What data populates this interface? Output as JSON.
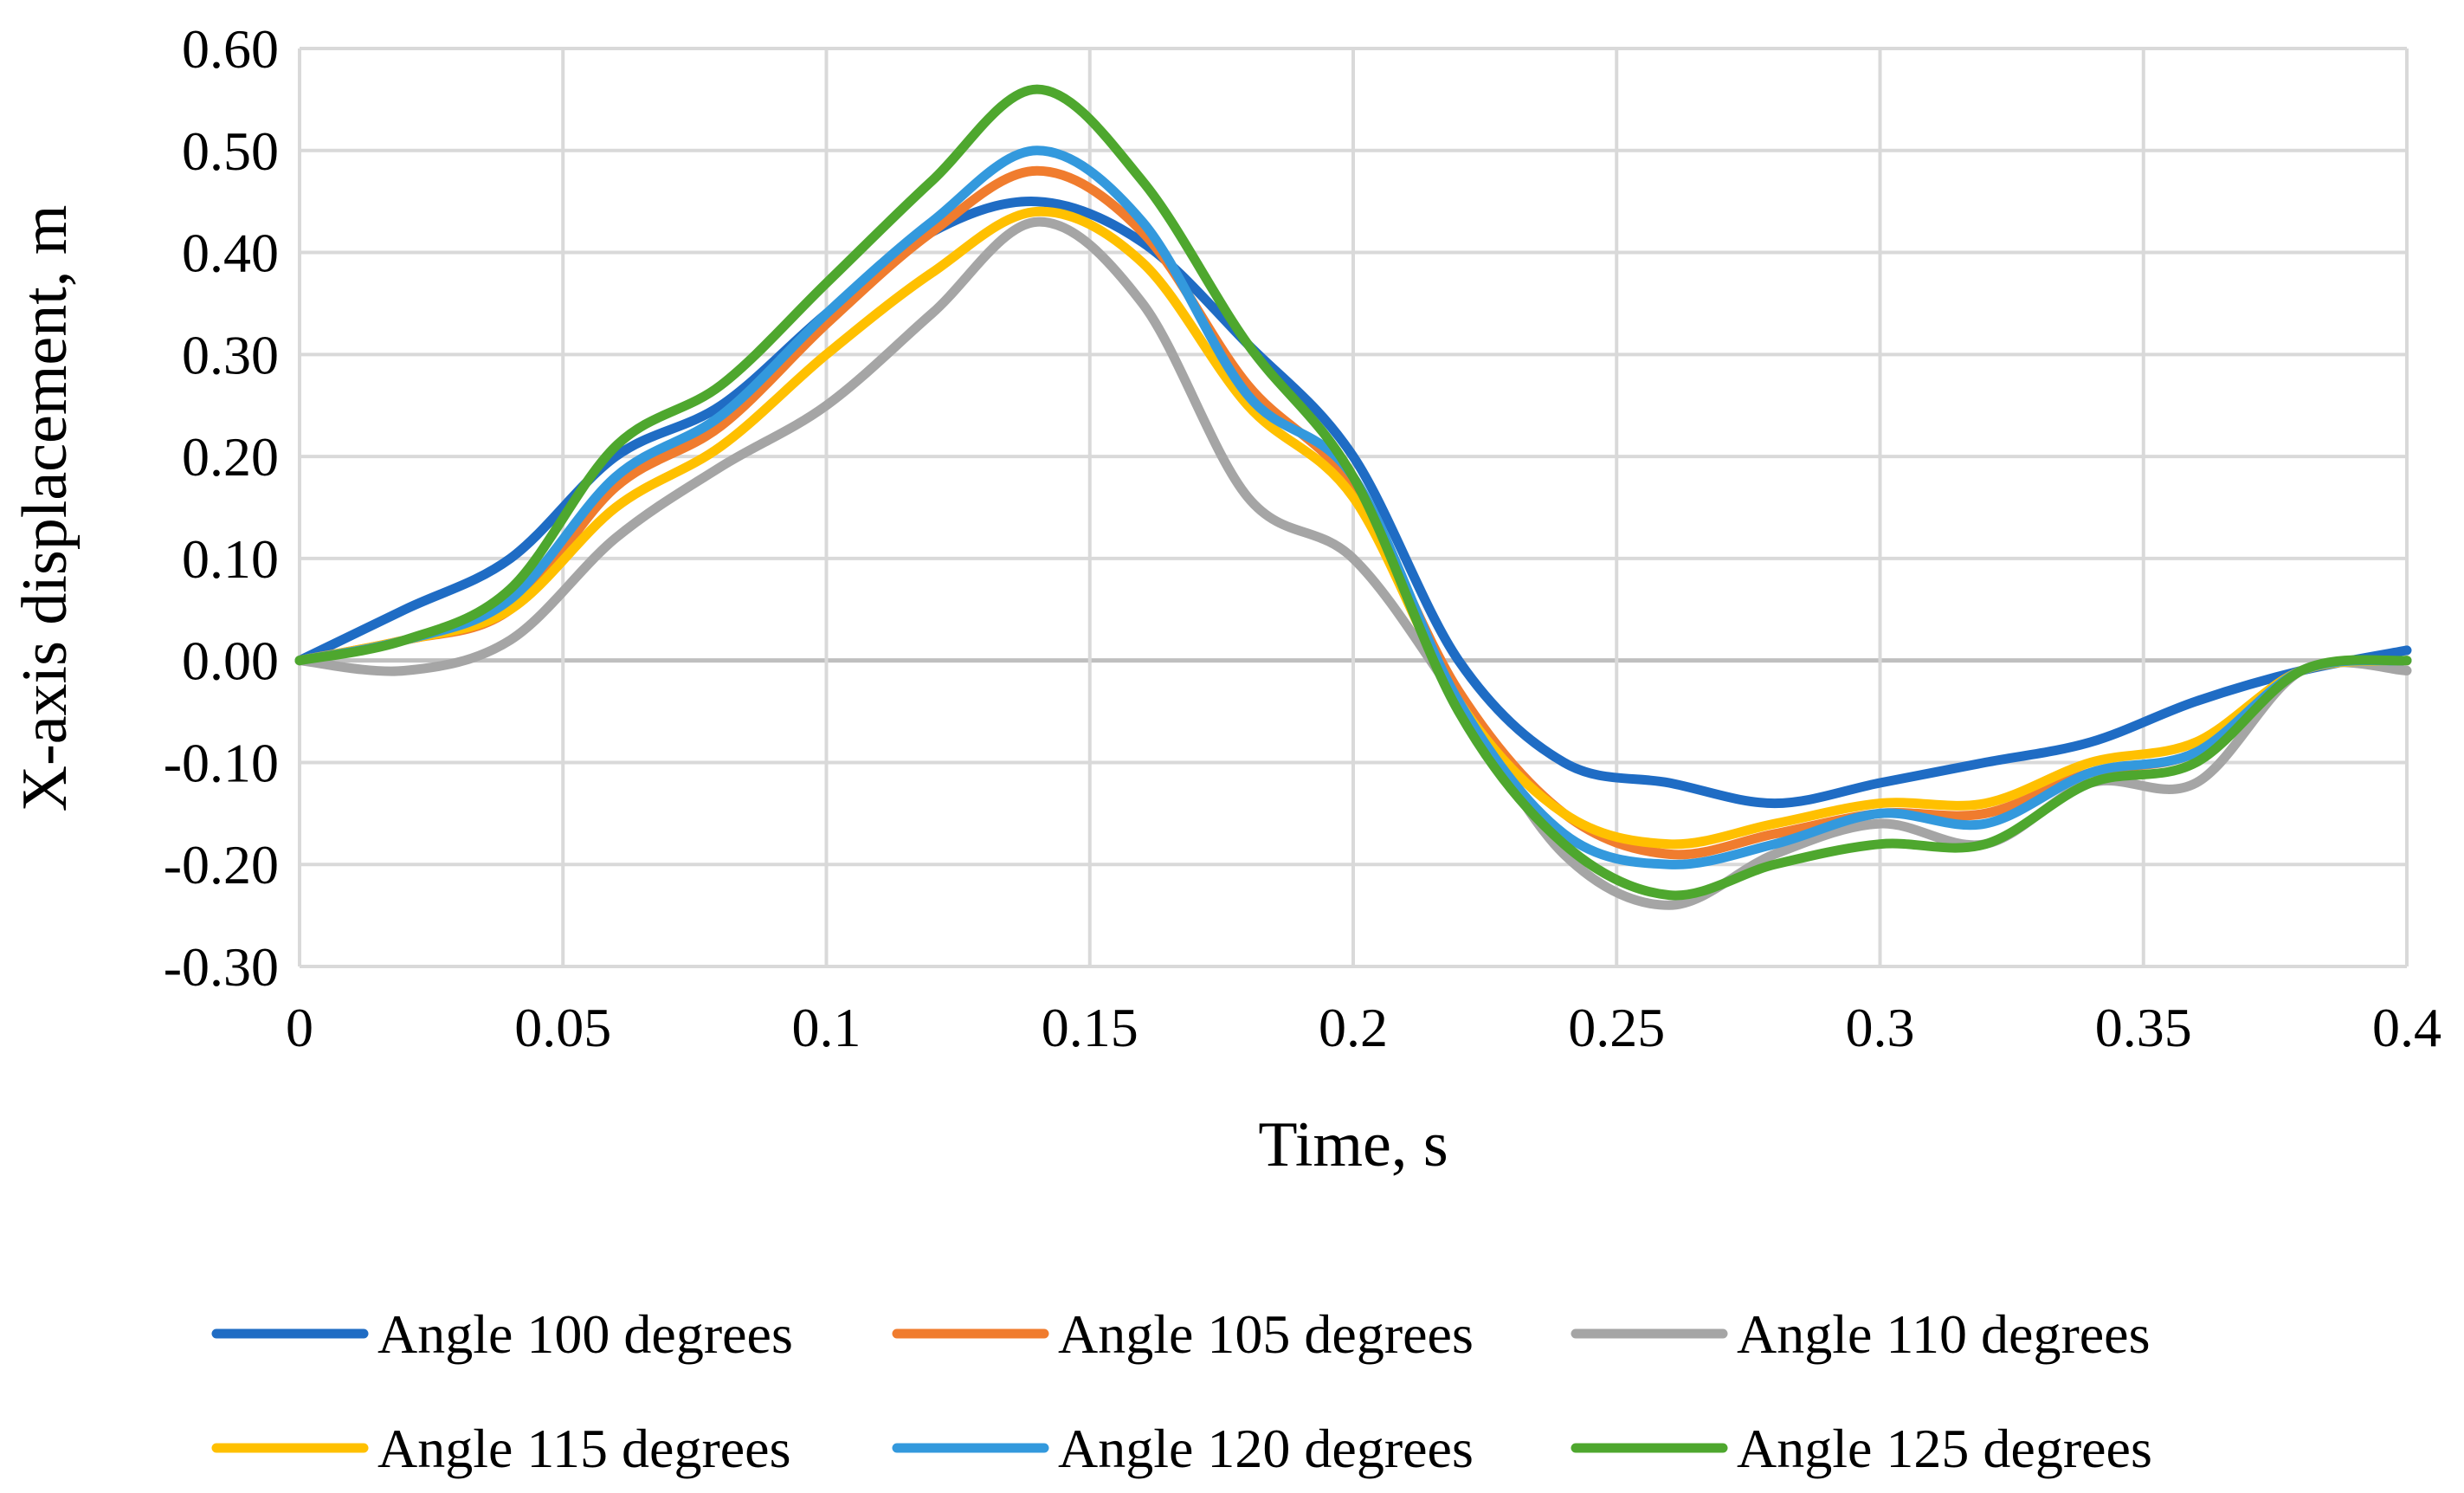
{
  "chart_data": {
    "type": "line",
    "title": "",
    "xlabel": "Time, s",
    "ylabel": "X-axis displacement, m",
    "xlim": [
      0,
      0.4
    ],
    "ylim": [
      -0.3,
      0.6
    ],
    "grid": true,
    "legend_position": "bottom",
    "x_tick_labels": [
      "0",
      "0.05",
      "0.1",
      "0.15",
      "0.2",
      "0.25",
      "0.3",
      "0.35",
      "0.4"
    ],
    "y_tick_labels": [
      "0.60",
      "0.50",
      "0.40",
      "0.30",
      "0.20",
      "0.10",
      "0.00",
      "-0.10",
      "-0.20",
      "-0.30"
    ],
    "x": [
      0,
      0.02,
      0.04,
      0.06,
      0.08,
      0.1,
      0.12,
      0.14,
      0.16,
      0.18,
      0.2,
      0.22,
      0.24,
      0.26,
      0.28,
      0.3,
      0.32,
      0.34,
      0.36,
      0.38,
      0.4
    ],
    "series": [
      {
        "name": "Angle 100 degrees",
        "color": "#1F6CC4",
        "values": [
          0.0,
          0.05,
          0.1,
          0.2,
          0.25,
          0.34,
          0.42,
          0.45,
          0.41,
          0.31,
          0.2,
          0.0,
          -0.1,
          -0.12,
          -0.14,
          -0.12,
          -0.1,
          -0.08,
          -0.04,
          -0.01,
          0.01
        ]
      },
      {
        "name": "Angle 105 degrees",
        "color": "#F07C2E",
        "values": [
          0.0,
          0.02,
          0.05,
          0.17,
          0.23,
          0.33,
          0.42,
          0.48,
          0.42,
          0.27,
          0.17,
          -0.03,
          -0.15,
          -0.19,
          -0.17,
          -0.15,
          -0.15,
          -0.11,
          -0.09,
          -0.01,
          0.0
        ]
      },
      {
        "name": "Angle 110 degrees",
        "color": "#A5A5A5",
        "values": [
          0.0,
          -0.01,
          0.02,
          0.12,
          0.19,
          0.25,
          0.34,
          0.43,
          0.35,
          0.16,
          0.1,
          -0.04,
          -0.19,
          -0.24,
          -0.19,
          -0.16,
          -0.18,
          -0.12,
          -0.12,
          -0.01,
          -0.01
        ]
      },
      {
        "name": "Angle 115 degrees",
        "color": "#FFC000",
        "values": [
          0.0,
          0.02,
          0.05,
          0.15,
          0.21,
          0.3,
          0.38,
          0.44,
          0.39,
          0.25,
          0.16,
          -0.04,
          -0.15,
          -0.18,
          -0.16,
          -0.14,
          -0.14,
          -0.1,
          -0.08,
          -0.01,
          0.0
        ]
      },
      {
        "name": "Angle 120 degrees",
        "color": "#3399DD",
        "values": [
          0.0,
          0.02,
          0.06,
          0.18,
          0.24,
          0.34,
          0.43,
          0.5,
          0.43,
          0.26,
          0.18,
          -0.04,
          -0.17,
          -0.2,
          -0.18,
          -0.15,
          -0.16,
          -0.11,
          -0.09,
          -0.01,
          0.0
        ]
      },
      {
        "name": "Angle 125 degrees",
        "color": "#4EA72E",
        "values": [
          0.0,
          0.02,
          0.07,
          0.21,
          0.27,
          0.37,
          0.47,
          0.56,
          0.47,
          0.31,
          0.18,
          -0.05,
          -0.18,
          -0.23,
          -0.2,
          -0.18,
          -0.18,
          -0.12,
          -0.1,
          -0.01,
          0.0
        ]
      }
    ]
  }
}
